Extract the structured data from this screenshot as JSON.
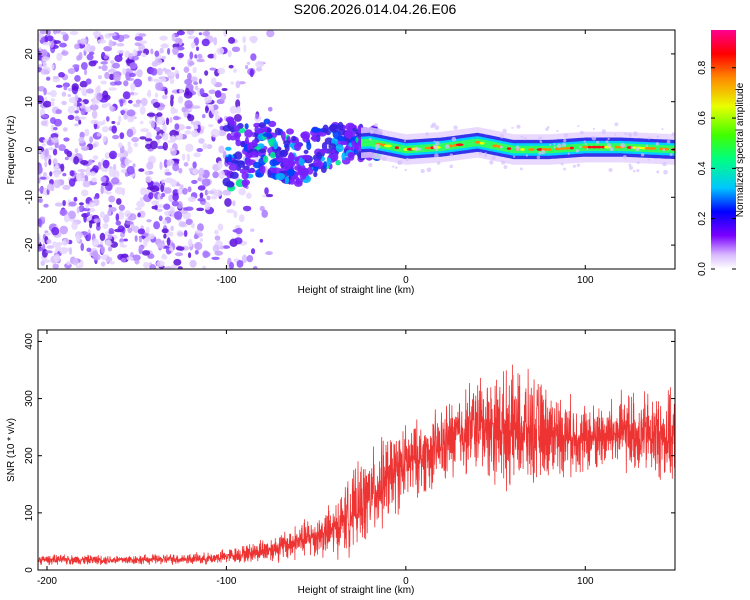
{
  "title": "S206.2026.014.04.26.E06",
  "chart_data": [
    {
      "type": "heatmap",
      "name": "spectrogram",
      "xlabel": "Height of straight line (km)",
      "ylabel": "Frequency (Hz)",
      "xlim": [
        -205,
        150
      ],
      "ylim": [
        -25,
        25
      ],
      "xticks": [
        -200,
        -100,
        0,
        100
      ],
      "yticks": [
        -20,
        -10,
        0,
        10,
        20
      ],
      "colorbar": {
        "label": "Normalized spectral amplitude",
        "range": [
          0,
          0.95
        ],
        "ticks": [
          0.0,
          0.2,
          0.4,
          0.6,
          0.8
        ]
      },
      "description_points": {
        "noise_region_x": [
          -205,
          -100
        ],
        "signal_ridge": [
          {
            "x": -100,
            "y": -1
          },
          {
            "x": -80,
            "y": 0
          },
          {
            "x": -60,
            "y": -2
          },
          {
            "x": -40,
            "y": 1
          },
          {
            "x": -20,
            "y": 1.5
          },
          {
            "x": 0,
            "y": 0
          },
          {
            "x": 20,
            "y": 0.5
          },
          {
            "x": 40,
            "y": 1.5
          },
          {
            "x": 60,
            "y": 0
          },
          {
            "x": 80,
            "y": 0
          },
          {
            "x": 100,
            "y": 0.5
          },
          {
            "x": 120,
            "y": 0.5
          },
          {
            "x": 150,
            "y": 0
          }
        ]
      }
    },
    {
      "type": "line",
      "name": "snr",
      "xlabel": "Height of straight line (km)",
      "ylabel": "SNR (10 * v/v)",
      "xlim": [
        -205,
        150
      ],
      "ylim": [
        0,
        420
      ],
      "xticks": [
        -200,
        -100,
        0,
        100
      ],
      "yticks": [
        0,
        100,
        200,
        300,
        400
      ],
      "color": "#ee3333",
      "envelope": {
        "x": [
          -205,
          -150,
          -110,
          -90,
          -70,
          -55,
          -40,
          -30,
          -20,
          -10,
          0,
          10,
          20,
          30,
          40,
          50,
          60,
          70,
          80,
          90,
          100,
          110,
          120,
          130,
          140,
          150
        ],
        "mean": [
          18,
          18,
          20,
          28,
          40,
          55,
          70,
          100,
          130,
          160,
          185,
          200,
          215,
          240,
          255,
          250,
          245,
          245,
          240,
          235,
          230,
          235,
          240,
          240,
          235,
          230
        ],
        "amp": [
          10,
          10,
          12,
          18,
          30,
          40,
          55,
          80,
          90,
          90,
          80,
          75,
          80,
          85,
          100,
          110,
          120,
          110,
          90,
          80,
          70,
          70,
          80,
          85,
          90,
          90
        ]
      }
    }
  ]
}
